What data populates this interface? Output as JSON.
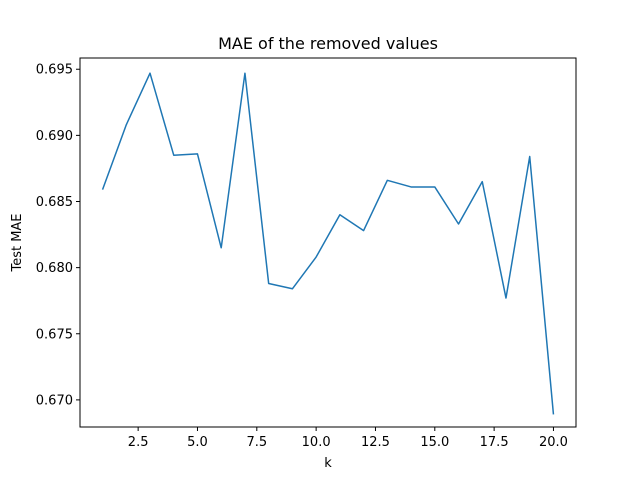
{
  "chart_data": {
    "type": "line",
    "title": "MAE of the removed values",
    "xlabel": "k",
    "ylabel": "Test MAE",
    "xlim": [
      0.05,
      20.95
    ],
    "ylim": [
      0.66795,
      0.69585
    ],
    "xticks": [
      2.5,
      5.0,
      7.5,
      10.0,
      12.5,
      15.0,
      17.5,
      20.0
    ],
    "xtick_labels": [
      "2.5",
      "5.0",
      "7.5",
      "10.0",
      "12.5",
      "15.0",
      "17.5",
      "20.0"
    ],
    "yticks": [
      0.67,
      0.675,
      0.68,
      0.685,
      0.69,
      0.695
    ],
    "ytick_labels": [
      "0.670",
      "0.675",
      "0.680",
      "0.685",
      "0.690",
      "0.695"
    ],
    "grid": false,
    "line_color": "#1f77b4",
    "series": [
      {
        "x": [
          1,
          2,
          3,
          4,
          5,
          6,
          7,
          8,
          9,
          10,
          11,
          12,
          13,
          14,
          15,
          16,
          17,
          18,
          19,
          20
        ],
        "values": [
          0.6859,
          0.6908,
          0.6947,
          0.6885,
          0.6886,
          0.6815,
          0.6947,
          0.6788,
          0.6784,
          0.6808,
          0.684,
          0.6828,
          0.6866,
          0.6861,
          0.6861,
          0.6833,
          0.6865,
          0.6777,
          0.6884,
          0.6689
        ]
      }
    ]
  }
}
